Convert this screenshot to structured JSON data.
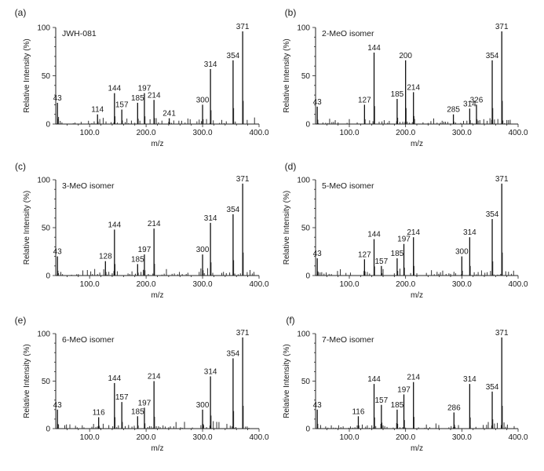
{
  "chart_data": [
    {
      "type": "bar",
      "panel": "(a)",
      "title": "JWH-081",
      "xlabel": "m/z",
      "ylabel": "Relative Intensity (%)",
      "xlim": [
        40,
        400
      ],
      "ylim": [
        0,
        100
      ],
      "xticks": [
        "100.0",
        "200.0",
        "300.0",
        "400.0"
      ],
      "yticks": [
        "0",
        "50",
        "100"
      ],
      "peaks": [
        {
          "x": 43,
          "y": 22,
          "label": "43"
        },
        {
          "x": 114,
          "y": 10,
          "label": "114"
        },
        {
          "x": 144,
          "y": 32,
          "label": "144"
        },
        {
          "x": 157,
          "y": 15,
          "label": "157"
        },
        {
          "x": 185,
          "y": 22,
          "label": "185"
        },
        {
          "x": 197,
          "y": 32,
          "label": "197"
        },
        {
          "x": 214,
          "y": 25,
          "label": "214"
        },
        {
          "x": 241,
          "y": 6,
          "label": "241"
        },
        {
          "x": 300,
          "y": 20,
          "label": "300"
        },
        {
          "x": 314,
          "y": 57,
          "label": "314"
        },
        {
          "x": 354,
          "y": 66,
          "label": "354"
        },
        {
          "x": 371,
          "y": 96,
          "label": "371"
        }
      ]
    },
    {
      "type": "bar",
      "panel": "(b)",
      "title": "2-MeO isomer",
      "xlabel": "m/z",
      "ylabel": "Relative Intensity (%)",
      "xlim": [
        40,
        400
      ],
      "ylim": [
        0,
        100
      ],
      "xticks": [
        "100.0",
        "200.0",
        "300.0",
        "400.0"
      ],
      "yticks": [
        "0",
        "50",
        "100"
      ],
      "peaks": [
        {
          "x": 43,
          "y": 18,
          "label": "43"
        },
        {
          "x": 127,
          "y": 20,
          "label": "127"
        },
        {
          "x": 144,
          "y": 74,
          "label": "144"
        },
        {
          "x": 185,
          "y": 26,
          "label": "185"
        },
        {
          "x": 200,
          "y": 66,
          "label": "200"
        },
        {
          "x": 214,
          "y": 33,
          "label": "214"
        },
        {
          "x": 285,
          "y": 10,
          "label": "285"
        },
        {
          "x": 314,
          "y": 16,
          "label": "314"
        },
        {
          "x": 326,
          "y": 20,
          "label": "326"
        },
        {
          "x": 354,
          "y": 66,
          "label": "354"
        },
        {
          "x": 371,
          "y": 96,
          "label": "371"
        }
      ]
    },
    {
      "type": "bar",
      "panel": "(c)",
      "title": "3-MeO isomer",
      "xlabel": "m/z",
      "ylabel": "Relative Intensity (%)",
      "xlim": [
        40,
        400
      ],
      "ylim": [
        0,
        100
      ],
      "xticks": [
        "100.0",
        "200.0",
        "300.0",
        "400.0"
      ],
      "yticks": [
        "0",
        "50",
        "100"
      ],
      "peaks": [
        {
          "x": 43,
          "y": 20,
          "label": "43"
        },
        {
          "x": 128,
          "y": 15,
          "label": "128"
        },
        {
          "x": 144,
          "y": 48,
          "label": "144"
        },
        {
          "x": 185,
          "y": 12,
          "label": "185"
        },
        {
          "x": 197,
          "y": 22,
          "label": "197"
        },
        {
          "x": 214,
          "y": 49,
          "label": "214"
        },
        {
          "x": 300,
          "y": 22,
          "label": "300"
        },
        {
          "x": 314,
          "y": 55,
          "label": "314"
        },
        {
          "x": 354,
          "y": 64,
          "label": "354"
        },
        {
          "x": 371,
          "y": 96,
          "label": "371"
        }
      ]
    },
    {
      "type": "bar",
      "panel": "(d)",
      "title": "5-MeO isomer",
      "xlabel": "m/z",
      "ylabel": "Relative Intensity (%)",
      "xlim": [
        40,
        400
      ],
      "ylim": [
        0,
        100
      ],
      "xticks": [
        "100.0",
        "200.0",
        "300.0",
        "400.0"
      ],
      "yticks": [
        "0",
        "50",
        "100"
      ],
      "peaks": [
        {
          "x": 43,
          "y": 18,
          "label": "43"
        },
        {
          "x": 127,
          "y": 17,
          "label": "127"
        },
        {
          "x": 144,
          "y": 38,
          "label": "144"
        },
        {
          "x": 157,
          "y": 10,
          "label": "157"
        },
        {
          "x": 185,
          "y": 18,
          "label": "185"
        },
        {
          "x": 197,
          "y": 33,
          "label": "197"
        },
        {
          "x": 214,
          "y": 40,
          "label": "214"
        },
        {
          "x": 300,
          "y": 20,
          "label": "300"
        },
        {
          "x": 314,
          "y": 40,
          "label": "314"
        },
        {
          "x": 354,
          "y": 59,
          "label": "354"
        },
        {
          "x": 371,
          "y": 96,
          "label": "371"
        }
      ]
    },
    {
      "type": "bar",
      "panel": "(e)",
      "title": "6-MeO isomer",
      "xlabel": "m/z",
      "ylabel": "Relative Intensity (%)",
      "xlim": [
        40,
        400
      ],
      "ylim": [
        0,
        100
      ],
      "xticks": [
        "100.0",
        "200.0",
        "300.0",
        "400.0"
      ],
      "yticks": [
        "0",
        "50",
        "100"
      ],
      "peaks": [
        {
          "x": 43,
          "y": 20,
          "label": "43"
        },
        {
          "x": 116,
          "y": 12,
          "label": "116"
        },
        {
          "x": 144,
          "y": 48,
          "label": "144"
        },
        {
          "x": 157,
          "y": 28,
          "label": "157"
        },
        {
          "x": 185,
          "y": 13,
          "label": "185"
        },
        {
          "x": 197,
          "y": 22,
          "label": "197"
        },
        {
          "x": 214,
          "y": 50,
          "label": "214"
        },
        {
          "x": 300,
          "y": 20,
          "label": "300"
        },
        {
          "x": 314,
          "y": 55,
          "label": "314"
        },
        {
          "x": 354,
          "y": 74,
          "label": "354"
        },
        {
          "x": 371,
          "y": 96,
          "label": "371"
        }
      ]
    },
    {
      "type": "bar",
      "panel": "(f)",
      "title": "7-MeO isomer",
      "xlabel": "m/z",
      "ylabel": "Relative Intensity (%)",
      "xlim": [
        40,
        400
      ],
      "ylim": [
        0,
        100
      ],
      "xticks": [
        "100.0",
        "200.0",
        "300.0",
        "400.0"
      ],
      "yticks": [
        "0",
        "50",
        "100"
      ],
      "peaks": [
        {
          "x": 43,
          "y": 20,
          "label": "43"
        },
        {
          "x": 116,
          "y": 13,
          "label": "116"
        },
        {
          "x": 144,
          "y": 47,
          "label": "144"
        },
        {
          "x": 157,
          "y": 25,
          "label": "157"
        },
        {
          "x": 185,
          "y": 20,
          "label": "185"
        },
        {
          "x": 197,
          "y": 36,
          "label": "197"
        },
        {
          "x": 214,
          "y": 49,
          "label": "214"
        },
        {
          "x": 286,
          "y": 17,
          "label": "286"
        },
        {
          "x": 314,
          "y": 47,
          "label": "314"
        },
        {
          "x": 354,
          "y": 39,
          "label": "354"
        },
        {
          "x": 371,
          "y": 96,
          "label": "371"
        }
      ]
    }
  ]
}
